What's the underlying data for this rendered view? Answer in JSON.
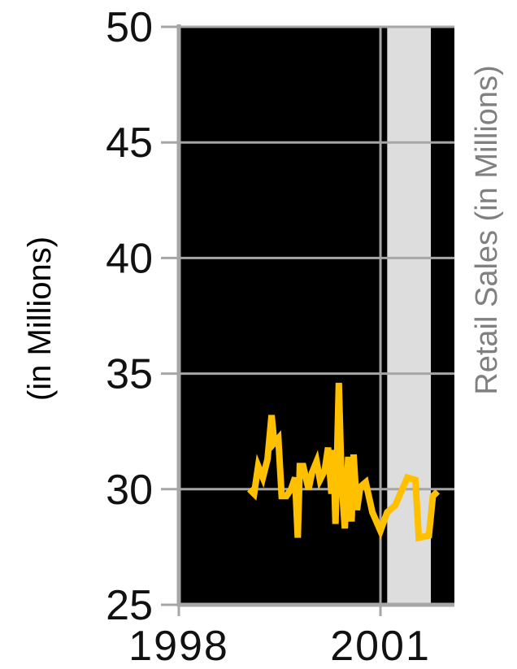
{
  "chart_data": {
    "type": "line",
    "title": "",
    "xlabel": "",
    "ylabel": "(in Millions)",
    "y2label": "Retail Sales (in Millions)",
    "xlim": [
      1998,
      2002.1
    ],
    "ylim": [
      25,
      50
    ],
    "x_ticks": [
      1998,
      2001
    ],
    "y_ticks": [
      25,
      30,
      35,
      40,
      45,
      50
    ],
    "grid": true,
    "colors": {
      "plot_background": "#000000",
      "highlight_band": "#dddddd",
      "series_line": "#ffc000",
      "grid_line": "#a6a6a6",
      "y2label_color": "#808080"
    },
    "highlight_range": [
      2001.1,
      2001.75
    ],
    "series": [
      {
        "values": [
          [
            1999.05,
            30.0
          ],
          [
            1999.12,
            29.8
          ],
          [
            1999.18,
            31.0
          ],
          [
            1999.25,
            30.5
          ],
          [
            1999.32,
            31.3
          ],
          [
            1999.38,
            33.2
          ],
          [
            1999.42,
            32.0
          ],
          [
            1999.48,
            32.2
          ],
          [
            1999.53,
            29.7
          ],
          [
            1999.6,
            29.7
          ],
          [
            1999.67,
            30.0
          ],
          [
            1999.73,
            30.5
          ],
          [
            1999.77,
            27.9
          ],
          [
            1999.8,
            31.0
          ],
          [
            1999.85,
            31.0
          ],
          [
            1999.93,
            30.0
          ],
          [
            1999.98,
            30.7
          ],
          [
            2000.05,
            31.2
          ],
          [
            2000.1,
            30.4
          ],
          [
            2000.17,
            30.8
          ],
          [
            2000.22,
            31.8
          ],
          [
            2000.27,
            29.8
          ],
          [
            2000.3,
            31.7
          ],
          [
            2000.33,
            28.5
          ],
          [
            2000.38,
            34.6
          ],
          [
            2000.42,
            30.4
          ],
          [
            2000.47,
            28.3
          ],
          [
            2000.52,
            31.4
          ],
          [
            2000.57,
            28.6
          ],
          [
            2000.6,
            31.5
          ],
          [
            2000.65,
            29.1
          ],
          [
            2000.7,
            30.1
          ],
          [
            2000.78,
            30.3
          ],
          [
            2000.88,
            29.0
          ],
          [
            2001.0,
            28.2
          ],
          [
            2001.1,
            29.0
          ],
          [
            2001.22,
            29.3
          ],
          [
            2001.4,
            30.5
          ],
          [
            2001.52,
            30.4
          ],
          [
            2001.57,
            27.9
          ],
          [
            2001.72,
            28.0
          ],
          [
            2001.78,
            29.7
          ],
          [
            2001.85,
            29.9
          ]
        ]
      }
    ]
  }
}
